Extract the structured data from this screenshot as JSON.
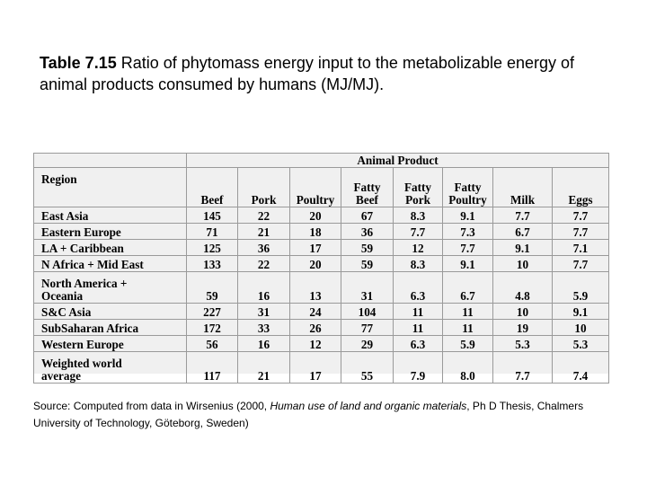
{
  "title": {
    "label": "Table 7.15",
    "text": " Ratio of phytomass energy input to the metabolizable energy of animal products consumed by humans (MJ/MJ)."
  },
  "table": {
    "region_header": "Region",
    "group_header": "Animal Product",
    "columns": [
      "Beef",
      "Pork",
      "Poultry",
      "Fatty\nBeef",
      "Fatty\nPork",
      "Fatty\nPoultry",
      "Milk",
      "Eggs"
    ],
    "rows": [
      {
        "region": "East Asia",
        "values": [
          "145",
          "22",
          "20",
          "67",
          "8.3",
          "9.1",
          "7.7",
          "7.7"
        ]
      },
      {
        "region": "Eastern Europe",
        "values": [
          "71",
          "21",
          "18",
          "36",
          "7.7",
          "7.3",
          "6.7",
          "7.7"
        ]
      },
      {
        "region": "LA + Caribbean",
        "values": [
          "125",
          "36",
          "17",
          "59",
          "12",
          "7.7",
          "9.1",
          "7.1"
        ]
      },
      {
        "region": "N Africa + Mid East",
        "values": [
          "133",
          "22",
          "20",
          "59",
          "8.3",
          "9.1",
          "10",
          "7.7"
        ]
      },
      {
        "region": "North America +\nOceania",
        "values": [
          "59",
          "16",
          "13",
          "31",
          "6.3",
          "6.7",
          "4.8",
          "5.9"
        ]
      },
      {
        "region": "S&C Asia",
        "values": [
          "227",
          "31",
          "24",
          "104",
          "11",
          "11",
          "10",
          "9.1"
        ]
      },
      {
        "region": "SubSaharan Africa",
        "values": [
          "172",
          "33",
          "26",
          "77",
          "11",
          "11",
          "19",
          "10"
        ]
      },
      {
        "region": "Western Europe",
        "values": [
          "56",
          "16",
          "12",
          "29",
          "6.3",
          "5.9",
          "5.3",
          "5.3"
        ]
      },
      {
        "region": "Weighted world\naverage",
        "values": [
          "117",
          "21",
          "17",
          "55",
          "7.9",
          "8.0",
          "7.7",
          "7.4"
        ]
      }
    ]
  },
  "source": {
    "prefix": "Source: Computed from data in Wirsenius (2000, ",
    "italic": "Human use of land and organic materials",
    "suffix": ", Ph D Thesis, Chalmers University of Technology, Göteborg, Sweden)"
  }
}
